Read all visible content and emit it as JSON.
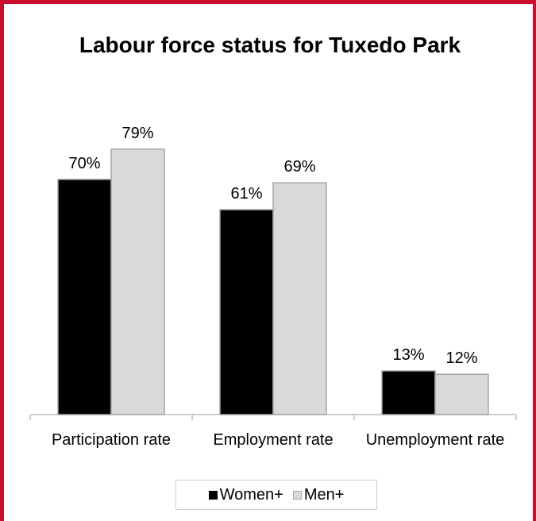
{
  "chart_data": {
    "type": "bar",
    "title": "Labour force status for Tuxedo Park",
    "categories": [
      "Participation rate",
      "Employment rate",
      "Unemployment rate"
    ],
    "series": [
      {
        "name": "Women+",
        "values": [
          70,
          61,
          13
        ],
        "labels": [
          "70%",
          "61%",
          "13%"
        ],
        "color": "#000000"
      },
      {
        "name": "Men+",
        "values": [
          79,
          69,
          12
        ],
        "labels": [
          "79%",
          "69%",
          "12%"
        ],
        "color": "#d9d9d9"
      }
    ],
    "ylim": [
      0,
      100
    ],
    "grid": false,
    "legend_position": "bottom"
  },
  "colors": {
    "frame": "#c8102e",
    "bar_outline": "#a6a6a6"
  }
}
